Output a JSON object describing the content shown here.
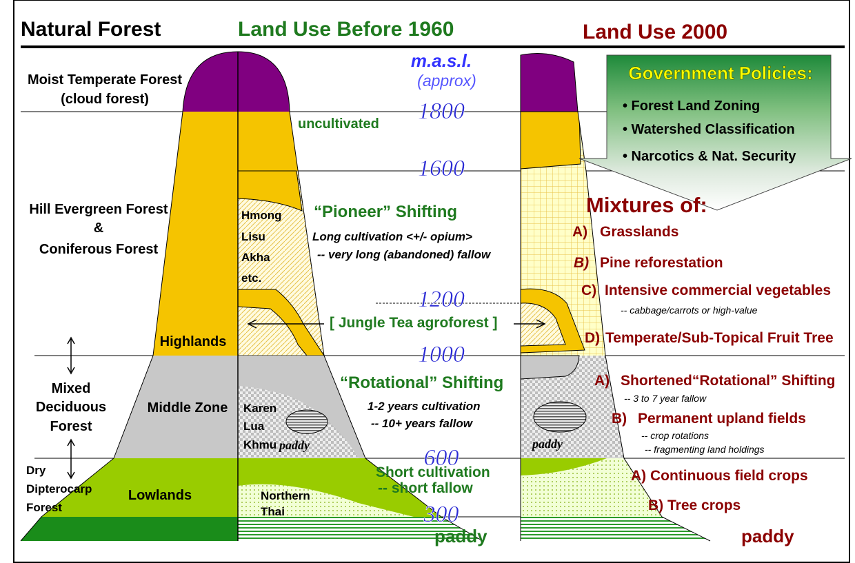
{
  "header": {
    "natural_forest": "Natural Forest",
    "before_1960": "Land Use Before 1960",
    "year_2000": "Land Use 2000"
  },
  "elevation_scale": {
    "unit": "m.a.s.l.",
    "note": "(approx)",
    "levels": [
      1800,
      1600,
      1200,
      1000,
      600,
      300
    ]
  },
  "natural_forest": {
    "moist_temperate": [
      "Moist Temperate Forest",
      "(cloud forest)"
    ],
    "hill_evergreen": [
      "Hill Evergreen Forest",
      "&",
      "Coniferous Forest"
    ],
    "highlands": "Highlands",
    "mixed_deciduous": [
      "Mixed",
      "Deciduous",
      "Forest"
    ],
    "middle_zone": "Middle Zone",
    "dry_dipterocarp": [
      "Dry",
      "Dipterocarp",
      "Forest"
    ],
    "lowlands": "Lowlands"
  },
  "before_1960": {
    "uncultivated": "uncultivated",
    "pioneer": {
      "title": "“Pioneer” Shifting",
      "lines": [
        "Long cultivation <+/- opium>",
        "-- very long (abandoned) fallow"
      ],
      "groups": [
        "Hmong",
        "Lisu",
        "Akha",
        "etc."
      ]
    },
    "jungle_tea": "[ Jungle Tea agroforest ]",
    "rotational": {
      "title": "“Rotational” Shifting",
      "lines": [
        "1-2 years cultivation",
        "-- 10+ years fallow"
      ],
      "groups": [
        "Karen",
        "Lua",
        "Khmu"
      ],
      "paddy": "paddy"
    },
    "short": {
      "lines": [
        "Short cultivation",
        "-- short fallow"
      ],
      "groups": [
        "Northern",
        "Thai"
      ]
    },
    "paddy": "paddy"
  },
  "government_policies": {
    "title": "Government Policies:",
    "items": [
      "• Forest Land Zoning",
      "• Watershed Classification",
      "• Narcotics & Nat. Security"
    ]
  },
  "year_2000": {
    "title": "Mixtures of:",
    "highland": [
      {
        "letter": "A)",
        "text": "Grasslands"
      },
      {
        "letter": "B)",
        "text": "Pine reforestation"
      },
      {
        "letter": "C)",
        "text": "Intensive commercial vegetables",
        "note": [
          "-- cabbage/carrots or high-value"
        ]
      },
      {
        "letter": "D)",
        "text": "Temperate/Sub-Topical Fruit Tree"
      }
    ],
    "middle": [
      {
        "letter": "A)",
        "text": "Shortened“Rotational” Shifting",
        "note": [
          "-- 3 to 7 year fallow"
        ]
      },
      {
        "letter": "B)",
        "text": "Permanent upland fields",
        "note": [
          "-- crop rotations",
          "-- fragmenting land holdings"
        ]
      }
    ],
    "lowland": [
      "A) Continuous field crops",
      "B) Tree crops"
    ],
    "paddy_mid": "paddy",
    "paddy": "paddy"
  }
}
